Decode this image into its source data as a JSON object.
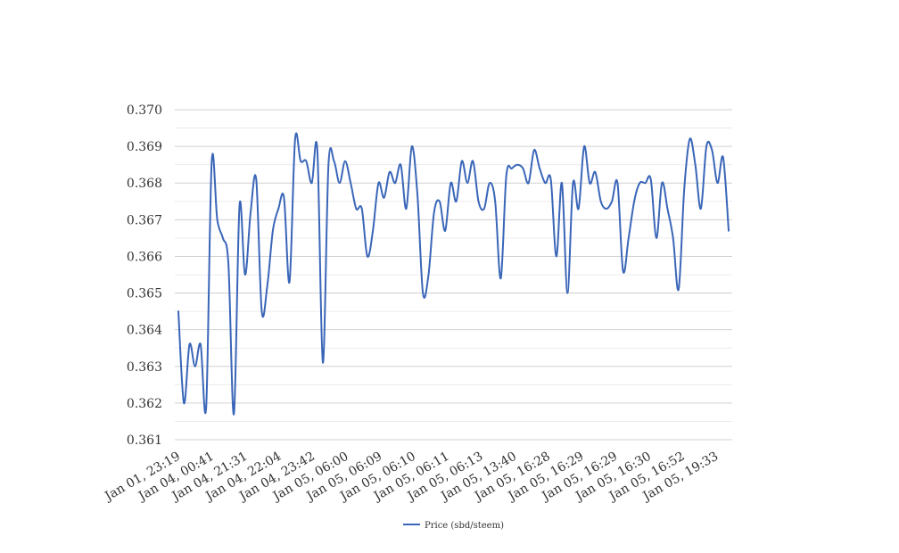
{
  "chart_data": {
    "type": "line",
    "title": "",
    "xlabel": "",
    "ylabel": "",
    "ylim": [
      0.361,
      0.37
    ],
    "y_ticks": [
      "0.361",
      "0.362",
      "0.363",
      "0.364",
      "0.365",
      "0.366",
      "0.367",
      "0.368",
      "0.369",
      "0.370"
    ],
    "x_tick_labels": [
      "Jan 01, 23:19",
      "Jan 04, 00:41",
      "Jan 04, 21:31",
      "Jan 04, 22:04",
      "Jan 04, 23:42",
      "Jan 05, 06:00",
      "Jan 05, 06:09",
      "Jan 05, 06:10",
      "Jan 05, 06:11",
      "Jan 05, 06:13",
      "Jan 05, 13:40",
      "Jan 05, 16:28",
      "Jan 05, 16:29",
      "Jan 05, 16:29",
      "Jan 05, 16:30",
      "Jan 05, 16:52",
      "Jan 05, 19:33"
    ],
    "grid": true,
    "legend_position": "bottom",
    "series": [
      {
        "name": "Price (sbd/steem)",
        "color": "#3a66b8",
        "values": [
          0.3645,
          0.362,
          0.3636,
          0.363,
          0.3636,
          0.3619,
          0.3686,
          0.367,
          0.3665,
          0.3658,
          0.3617,
          0.3674,
          0.3655,
          0.3672,
          0.3681,
          0.3645,
          0.3652,
          0.3667,
          0.3673,
          0.3676,
          0.3653,
          0.3692,
          0.3686,
          0.3686,
          0.368,
          0.3689,
          0.3631,
          0.3685,
          0.3686,
          0.368,
          0.3686,
          0.368,
          0.3673,
          0.3673,
          0.366,
          0.3667,
          0.368,
          0.3676,
          0.3683,
          0.368,
          0.3685,
          0.3673,
          0.369,
          0.3677,
          0.365,
          0.3655,
          0.3672,
          0.3675,
          0.3667,
          0.368,
          0.3675,
          0.3686,
          0.368,
          0.3686,
          0.3675,
          0.3673,
          0.368,
          0.3675,
          0.3654,
          0.3682,
          0.3684,
          0.3685,
          0.3684,
          0.368,
          0.3689,
          0.3684,
          0.368,
          0.3681,
          0.366,
          0.368,
          0.365,
          0.368,
          0.3673,
          0.369,
          0.368,
          0.3683,
          0.3675,
          0.3673,
          0.3675,
          0.368,
          0.3656,
          0.3665,
          0.3675,
          0.368,
          0.368,
          0.3681,
          0.3665,
          0.368,
          0.3673,
          0.3665,
          0.3651,
          0.3678,
          0.3692,
          0.3685,
          0.3673,
          0.369,
          0.3689,
          0.368,
          0.3687,
          0.3667
        ]
      }
    ]
  }
}
